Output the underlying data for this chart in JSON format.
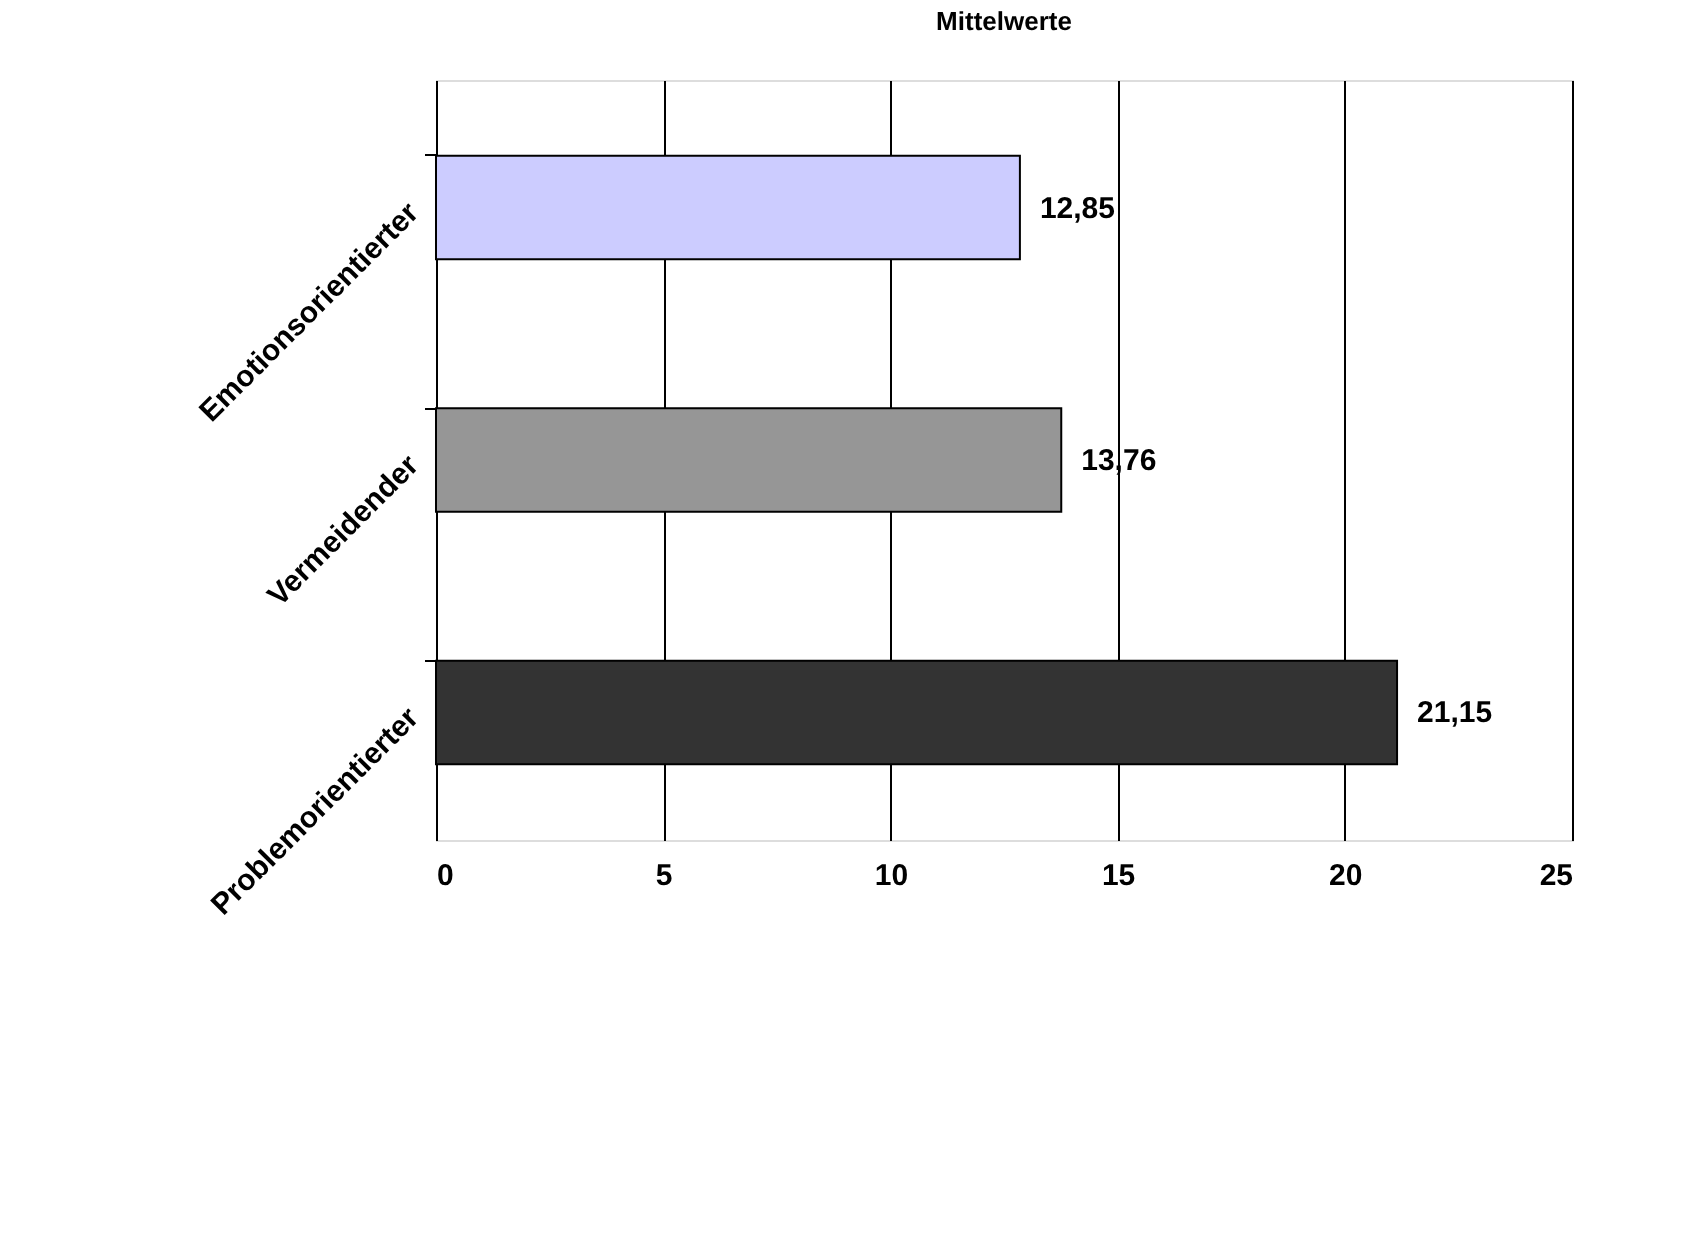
{
  "chart_data": {
    "type": "bar",
    "orientation": "horizontal",
    "title": "Mittelwerte",
    "categories": [
      "Emotionsorientierter",
      "Vermeidender",
      "Problemorientierter"
    ],
    "values": [
      12.85,
      13.76,
      21.15
    ],
    "colors": [
      "#ccccff",
      "#969696",
      "#333333"
    ],
    "value_labels": [
      "12,85",
      "13,76",
      "21,15"
    ],
    "xlim": [
      0,
      25
    ],
    "xticks": [
      0,
      5,
      10,
      15,
      20,
      25
    ],
    "grid": "x"
  }
}
